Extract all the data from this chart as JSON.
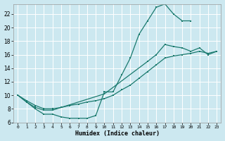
{
  "xlabel": "Humidex (Indice chaleur)",
  "bg_color": "#cce8f0",
  "grid_color": "#ffffff",
  "line_color": "#1a7a6e",
  "xlim": [
    -0.5,
    23.5
  ],
  "ylim": [
    6,
    23.5
  ],
  "xticks": [
    0,
    1,
    2,
    3,
    4,
    5,
    6,
    7,
    8,
    9,
    10,
    11,
    12,
    13,
    14,
    15,
    16,
    17,
    18,
    19,
    20,
    21,
    22,
    23
  ],
  "yticks": [
    6,
    8,
    10,
    12,
    14,
    16,
    18,
    20,
    22
  ],
  "s1x": [
    0,
    1,
    2,
    3,
    4,
    5,
    6,
    7,
    8,
    9,
    10,
    11,
    12,
    13,
    14,
    15,
    16,
    17,
    18,
    19,
    20
  ],
  "s1y": [
    10,
    9,
    8,
    7.2,
    7.2,
    6.8,
    6.6,
    6.6,
    6.6,
    7.0,
    10.5,
    10.5,
    13.0,
    15.5,
    19.0,
    21.0,
    23.0,
    23.5,
    22.0,
    21.0,
    21.0
  ],
  "s2x": [
    0,
    1,
    2,
    3,
    4,
    10,
    15,
    16,
    17,
    18,
    19,
    20,
    21,
    22,
    23
  ],
  "s2y": [
    10,
    9,
    8.2,
    7.8,
    7.8,
    10.2,
    15.0,
    16.0,
    17.5,
    17.2,
    17.0,
    16.5,
    17.0,
    16.0,
    16.5
  ],
  "s3x": [
    0,
    1,
    2,
    3,
    4,
    5,
    6,
    7,
    8,
    9,
    10,
    11,
    12,
    13,
    14,
    15,
    16,
    17,
    18,
    19,
    20,
    21,
    22,
    23
  ],
  "s3y": [
    10,
    9.2,
    8.5,
    8.0,
    8.0,
    8.2,
    8.5,
    8.7,
    9.0,
    9.2,
    9.5,
    10.0,
    10.8,
    11.5,
    12.5,
    13.5,
    14.5,
    15.5,
    15.8,
    16.0,
    16.2,
    16.5,
    16.2,
    16.5
  ]
}
